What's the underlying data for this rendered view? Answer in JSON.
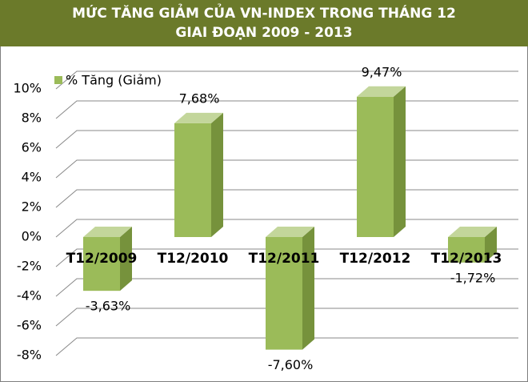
{
  "chart_data": {
    "type": "bar3d",
    "title": "MỨC TĂNG GIẢM CỦA VN-INDEX TRONG THÁNG 12",
    "subtitle": "GIAI ĐOẠN 2009 - 2013",
    "categories": [
      "T12/2009",
      "T12/2010",
      "T12/2011",
      "T12/2012",
      "T12/2013"
    ],
    "series": [
      {
        "name": "% Tăng (Giảm)",
        "color": "#9bbb59",
        "values": [
          -3.63,
          7.68,
          -7.6,
          9.47,
          -1.72
        ],
        "value_labels": [
          "-3,63%",
          "7,68%",
          "-7,60%",
          "9,47%",
          "-1,72%"
        ]
      }
    ],
    "ylim": [
      -8,
      10
    ],
    "yticks": [
      {
        "value": -8,
        "label": "-8%"
      },
      {
        "value": -6,
        "label": "-6%"
      },
      {
        "value": -4,
        "label": "-4%"
      },
      {
        "value": -2,
        "label": "-2%"
      },
      {
        "value": 0,
        "label": "0%"
      },
      {
        "value": 2,
        "label": "2%"
      },
      {
        "value": 4,
        "label": "4%"
      },
      {
        "value": 6,
        "label": "6%"
      },
      {
        "value": 8,
        "label": "8%"
      },
      {
        "value": 10,
        "label": "10%"
      }
    ],
    "grid": true,
    "legend": "top-left"
  }
}
